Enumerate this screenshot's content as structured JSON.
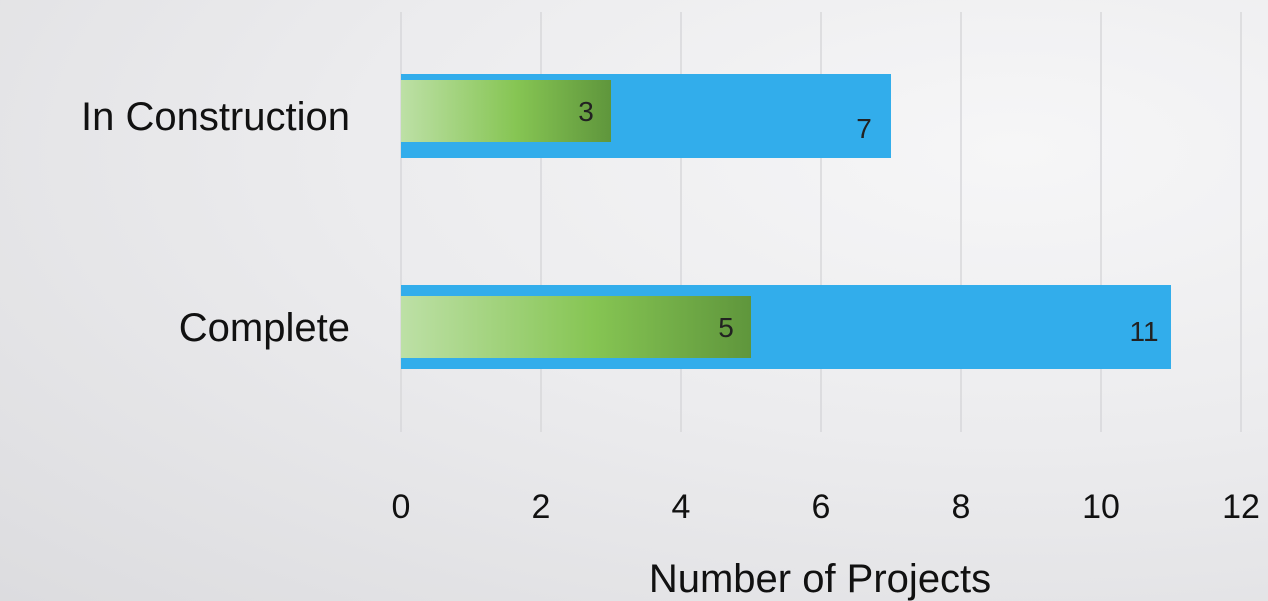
{
  "colors": {
    "outer_bar": "#32adeb",
    "inner_gradient": [
      "#bde0a6",
      "#86c553",
      "#5f963c"
    ],
    "gridline": "#d7d7da",
    "text": "#111111"
  },
  "chart_data": {
    "type": "bar",
    "orientation": "horizontal",
    "categories": [
      "In Construction",
      "Complete"
    ],
    "series": [
      {
        "values": [
          7,
          11
        ]
      },
      {
        "values": [
          3,
          5
        ]
      }
    ],
    "xlabel": "Number of Projects",
    "ylabel": "",
    "xlim": [
      0,
      12
    ],
    "xticks": [
      "0",
      "2",
      "4",
      "6",
      "8",
      "10",
      "12"
    ],
    "grid": true,
    "legend": "none"
  }
}
